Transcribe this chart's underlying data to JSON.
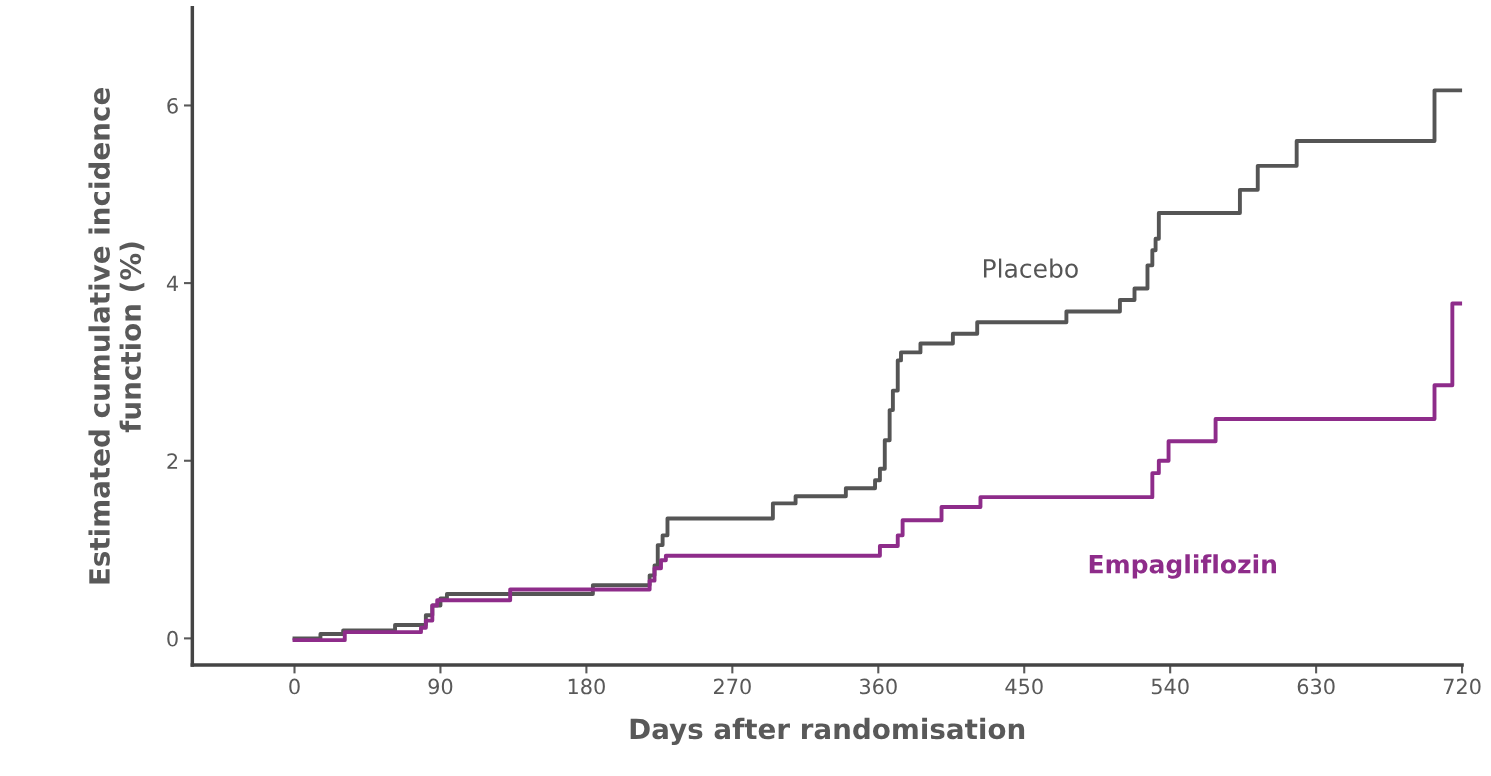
{
  "chart_data": {
    "type": "step",
    "xlabel": "Days after randomisation",
    "ylabel": "Estimated cumulative incidence\nfunction (%)",
    "xlim": [
      -63,
      720
    ],
    "ylim": [
      -0.3,
      7.1
    ],
    "xticks": [
      0,
      90,
      180,
      270,
      360,
      450,
      540,
      630,
      720
    ],
    "yticks": [
      0,
      2,
      4,
      6
    ],
    "grid": false,
    "legend": false,
    "series": [
      {
        "name": "Placebo",
        "color": "#555555",
        "x": [
          0,
          16,
          30,
          62,
          81,
          85,
          90,
          94,
          184,
          219,
          222,
          224,
          227,
          230,
          295,
          309,
          340,
          358,
          361,
          364,
          367,
          369,
          372,
          374,
          386,
          406,
          421,
          476,
          509,
          518,
          526,
          529,
          531,
          533,
          583,
          594,
          618,
          703,
          720
        ],
        "values": [
          0,
          0.05,
          0.09,
          0.15,
          0.26,
          0.37,
          0.45,
          0.5,
          0.6,
          0.71,
          0.82,
          1.05,
          1.16,
          1.35,
          1.52,
          1.6,
          1.69,
          1.78,
          1.91,
          2.23,
          2.57,
          2.79,
          3.13,
          3.22,
          3.32,
          3.43,
          3.56,
          3.68,
          3.81,
          3.94,
          4.2,
          4.37,
          4.5,
          4.79,
          5.05,
          5.32,
          5.6,
          6.17,
          6.17
        ]
      },
      {
        "name": "Empagliflozin",
        "color": "#8e2c8a",
        "x": [
          0,
          31,
          78,
          81,
          85,
          88,
          133,
          219,
          222,
          226,
          229,
          361,
          372,
          375,
          399,
          423,
          529,
          533,
          539,
          568,
          703,
          714,
          720
        ],
        "values": [
          -0.02,
          0.07,
          0.12,
          0.2,
          0.37,
          0.43,
          0.55,
          0.65,
          0.79,
          0.88,
          0.93,
          1.04,
          1.16,
          1.33,
          1.48,
          1.59,
          1.86,
          2.0,
          2.22,
          2.47,
          2.85,
          3.77,
          3.77
        ]
      }
    ]
  }
}
